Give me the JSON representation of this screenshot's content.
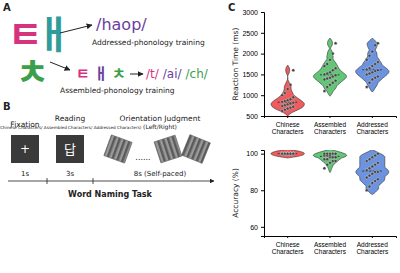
{
  "panel_a": {
    "label": "A",
    "character_parts": [
      "ㅌ",
      "ㅐ",
      "ㅊ"
    ],
    "addressed": {
      "phonology": "/haop/",
      "caption": "Addressed-phonology training"
    },
    "assembled": {
      "parts": [
        "ㅌ",
        "ㅐ",
        "ㅊ"
      ],
      "phonemes": [
        "/t/",
        "/ai/",
        "/ch/"
      ],
      "caption": "Assembled-phonology training"
    }
  },
  "panel_b": {
    "label": "B",
    "title": "Word Naming Task",
    "ellipsis": "......",
    "steps": [
      {
        "name": "Fixation",
        "symbol": "+",
        "duration": "1s"
      },
      {
        "name": "Reading",
        "symbol": "답",
        "note": "(Chinese Characters/ Assembled Characters/ Addressed Characters)",
        "duration": "3s"
      },
      {
        "name": "Orientation Judgment",
        "note": "(Left/Right)",
        "duration": "8s (Self-paced)"
      }
    ]
  },
  "panel_c": {
    "label": "C"
  },
  "chart_data": [
    {
      "type": "violin",
      "ylabel": "Reaction Time (ms)",
      "categories": [
        "Chinese Characters",
        "Assembled Characters",
        "Addressed Characters"
      ],
      "colors": [
        "#e8262b",
        "#2db34a",
        "#3b6fd6"
      ],
      "values": [
        [
          620,
          650,
          680,
          700,
          720,
          740,
          760,
          780,
          800,
          820,
          840,
          860,
          880,
          900,
          950,
          1000,
          1050,
          1150,
          1250,
          1600
        ],
        [
          1100,
          1200,
          1250,
          1300,
          1350,
          1380,
          1400,
          1420,
          1450,
          1480,
          1500,
          1520,
          1550,
          1600,
          1650,
          1700,
          1750,
          1850,
          2000,
          2250
        ],
        [
          1200,
          1300,
          1380,
          1420,
          1450,
          1500,
          1520,
          1550,
          1580,
          1600,
          1620,
          1650,
          1700,
          1750,
          1800,
          1850,
          1950,
          2050,
          2200,
          2250
        ]
      ],
      "ylim": [
        500,
        3000
      ],
      "yticks": [
        500,
        1000,
        1500,
        2000,
        2500,
        3000
      ]
    },
    {
      "type": "violin",
      "ylabel": "Accuracy (%)",
      "categories": [
        "Chinese Characters",
        "Assembled Characters",
        "Addressed Characters"
      ],
      "colors": [
        "#e8262b",
        "#2db34a",
        "#3b6fd6"
      ],
      "values": [
        [
          100,
          100,
          100,
          100,
          100,
          100,
          100,
          100,
          100,
          100,
          100,
          100,
          100,
          100,
          100,
          100,
          100,
          100,
          100,
          100
        ],
        [
          92,
          94,
          95,
          96,
          96,
          97,
          97,
          98,
          98,
          98,
          99,
          99,
          99,
          100,
          100,
          100,
          100,
          100,
          100,
          100
        ],
        [
          80,
          82,
          84,
          85,
          86,
          87,
          88,
          89,
          90,
          90,
          91,
          92,
          93,
          94,
          95,
          96,
          97,
          98,
          99,
          100
        ]
      ],
      "ylim": [
        55,
        102
      ],
      "yticks": [
        60,
        80,
        100
      ]
    }
  ]
}
